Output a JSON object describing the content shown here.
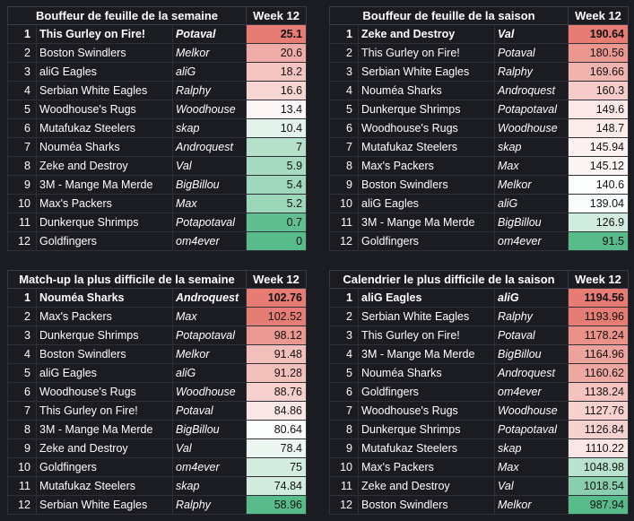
{
  "colors": {
    "background": "#1b1b22",
    "scale_low": "#57bb8a",
    "scale_mid": "#ffffff",
    "scale_high": "#e67c73"
  },
  "panels": [
    {
      "id": "weekly-top-scorer",
      "title": "Bouffeur de feuille de la semaine",
      "week_label": "Week 12",
      "rows": [
        {
          "rank": "1",
          "team": "This Gurley on Fire!",
          "coach": "Potaval",
          "score": "25.1"
        },
        {
          "rank": "2",
          "team": "Boston Swindlers",
          "coach": "Melkor",
          "score": "20.6"
        },
        {
          "rank": "3",
          "team": "aliG Eagles",
          "coach": "aliG",
          "score": "18.2"
        },
        {
          "rank": "4",
          "team": "Serbian White Eagles",
          "coach": "Ralphy",
          "score": "16.6"
        },
        {
          "rank": "5",
          "team": "Woodhouse's Rugs",
          "coach": "Woodhouse",
          "score": "13.4"
        },
        {
          "rank": "6",
          "team": "Mutafukaz Steelers",
          "coach": "skap",
          "score": "10.4"
        },
        {
          "rank": "7",
          "team": "Nouméa Sharks",
          "coach": "Androquest",
          "score": "7"
        },
        {
          "rank": "8",
          "team": "Zeke and Destroy",
          "coach": "Val",
          "score": "5.9"
        },
        {
          "rank": "9",
          "team": "3M - Mange Ma Merde",
          "coach": "BigBillou",
          "score": "5.4"
        },
        {
          "rank": "10",
          "team": "Max's Packers",
          "coach": "Max",
          "score": "5.2"
        },
        {
          "rank": "11",
          "team": "Dunkerque Shrimps",
          "coach": "Potapotaval",
          "score": "0.7"
        },
        {
          "rank": "12",
          "team": "Goldfingers",
          "coach": "om4ever",
          "score": "0"
        }
      ]
    },
    {
      "id": "season-top-scorer",
      "title": "Bouffeur de feuille de la saison",
      "week_label": "Week 12",
      "rows": [
        {
          "rank": "1",
          "team": "Zeke and Destroy",
          "coach": "Val",
          "score": "190.64"
        },
        {
          "rank": "2",
          "team": "This Gurley on Fire!",
          "coach": "Potaval",
          "score": "180.56"
        },
        {
          "rank": "3",
          "team": "Serbian White Eagles",
          "coach": "Ralphy",
          "score": "169.66"
        },
        {
          "rank": "4",
          "team": "Nouméa Sharks",
          "coach": "Androquest",
          "score": "160.3"
        },
        {
          "rank": "5",
          "team": "Dunkerque Shrimps",
          "coach": "Potapotaval",
          "score": "149.6"
        },
        {
          "rank": "6",
          "team": "Woodhouse's Rugs",
          "coach": "Woodhouse",
          "score": "148.7"
        },
        {
          "rank": "7",
          "team": "Mutafukaz Steelers",
          "coach": "skap",
          "score": "145.94"
        },
        {
          "rank": "8",
          "team": "Max's Packers",
          "coach": "Max",
          "score": "145.12"
        },
        {
          "rank": "9",
          "team": "Boston Swindlers",
          "coach": "Melkor",
          "score": "140.6"
        },
        {
          "rank": "10",
          "team": "aliG Eagles",
          "coach": "aliG",
          "score": "139.04"
        },
        {
          "rank": "11",
          "team": "3M - Mange Ma Merde",
          "coach": "BigBillou",
          "score": "126.9"
        },
        {
          "rank": "12",
          "team": "Goldfingers",
          "coach": "om4ever",
          "score": "91.5"
        }
      ]
    },
    {
      "id": "weekly-hardest-matchup",
      "title": "Match-up la plus difficile de la semaine",
      "week_label": "Week 12",
      "rows": [
        {
          "rank": "1",
          "team": "Nouméa Sharks",
          "coach": "Androquest",
          "score": "102.76"
        },
        {
          "rank": "2",
          "team": "Max's Packers",
          "coach": "Max",
          "score": "102.52"
        },
        {
          "rank": "3",
          "team": "Dunkerque Shrimps",
          "coach": "Potapotaval",
          "score": "98.12"
        },
        {
          "rank": "4",
          "team": "Boston Swindlers",
          "coach": "Melkor",
          "score": "91.48"
        },
        {
          "rank": "5",
          "team": "aliG Eagles",
          "coach": "aliG",
          "score": "91.28"
        },
        {
          "rank": "6",
          "team": "Woodhouse's Rugs",
          "coach": "Woodhouse",
          "score": "88.76"
        },
        {
          "rank": "7",
          "team": "This Gurley on Fire!",
          "coach": "Potaval",
          "score": "84.86"
        },
        {
          "rank": "8",
          "team": "3M - Mange Ma Merde",
          "coach": "BigBillou",
          "score": "80.64"
        },
        {
          "rank": "9",
          "team": "Zeke and Destroy",
          "coach": "Val",
          "score": "78.4"
        },
        {
          "rank": "10",
          "team": "Goldfingers",
          "coach": "om4ever",
          "score": "75"
        },
        {
          "rank": "11",
          "team": "Mutafukaz Steelers",
          "coach": "skap",
          "score": "74.84"
        },
        {
          "rank": "12",
          "team": "Serbian White Eagles",
          "coach": "Ralphy",
          "score": "58.96"
        }
      ]
    },
    {
      "id": "season-hardest-schedule",
      "title": "Calendrier le plus difficile de la saison",
      "week_label": "Week 12",
      "rows": [
        {
          "rank": "1",
          "team": "aliG Eagles",
          "coach": "aliG",
          "score": "1194.56"
        },
        {
          "rank": "2",
          "team": "Serbian White Eagles",
          "coach": "Ralphy",
          "score": "1193.96"
        },
        {
          "rank": "3",
          "team": "This Gurley on Fire!",
          "coach": "Potaval",
          "score": "1178.24"
        },
        {
          "rank": "4",
          "team": "3M - Mange Ma Merde",
          "coach": "BigBillou",
          "score": "1164.96"
        },
        {
          "rank": "5",
          "team": "Nouméa Sharks",
          "coach": "Androquest",
          "score": "1160.62"
        },
        {
          "rank": "6",
          "team": "Goldfingers",
          "coach": "om4ever",
          "score": "1138.24"
        },
        {
          "rank": "7",
          "team": "Woodhouse's Rugs",
          "coach": "Woodhouse",
          "score": "1127.76"
        },
        {
          "rank": "8",
          "team": "Dunkerque Shrimps",
          "coach": "Potapotaval",
          "score": "1126.84"
        },
        {
          "rank": "9",
          "team": "Mutafukaz Steelers",
          "coach": "skap",
          "score": "1110.22"
        },
        {
          "rank": "10",
          "team": "Max's Packers",
          "coach": "Max",
          "score": "1048.98"
        },
        {
          "rank": "11",
          "team": "Zeke and Destroy",
          "coach": "Val",
          "score": "1018.54"
        },
        {
          "rank": "12",
          "team": "Boston Swindlers",
          "coach": "Melkor",
          "score": "987.94"
        }
      ]
    }
  ]
}
